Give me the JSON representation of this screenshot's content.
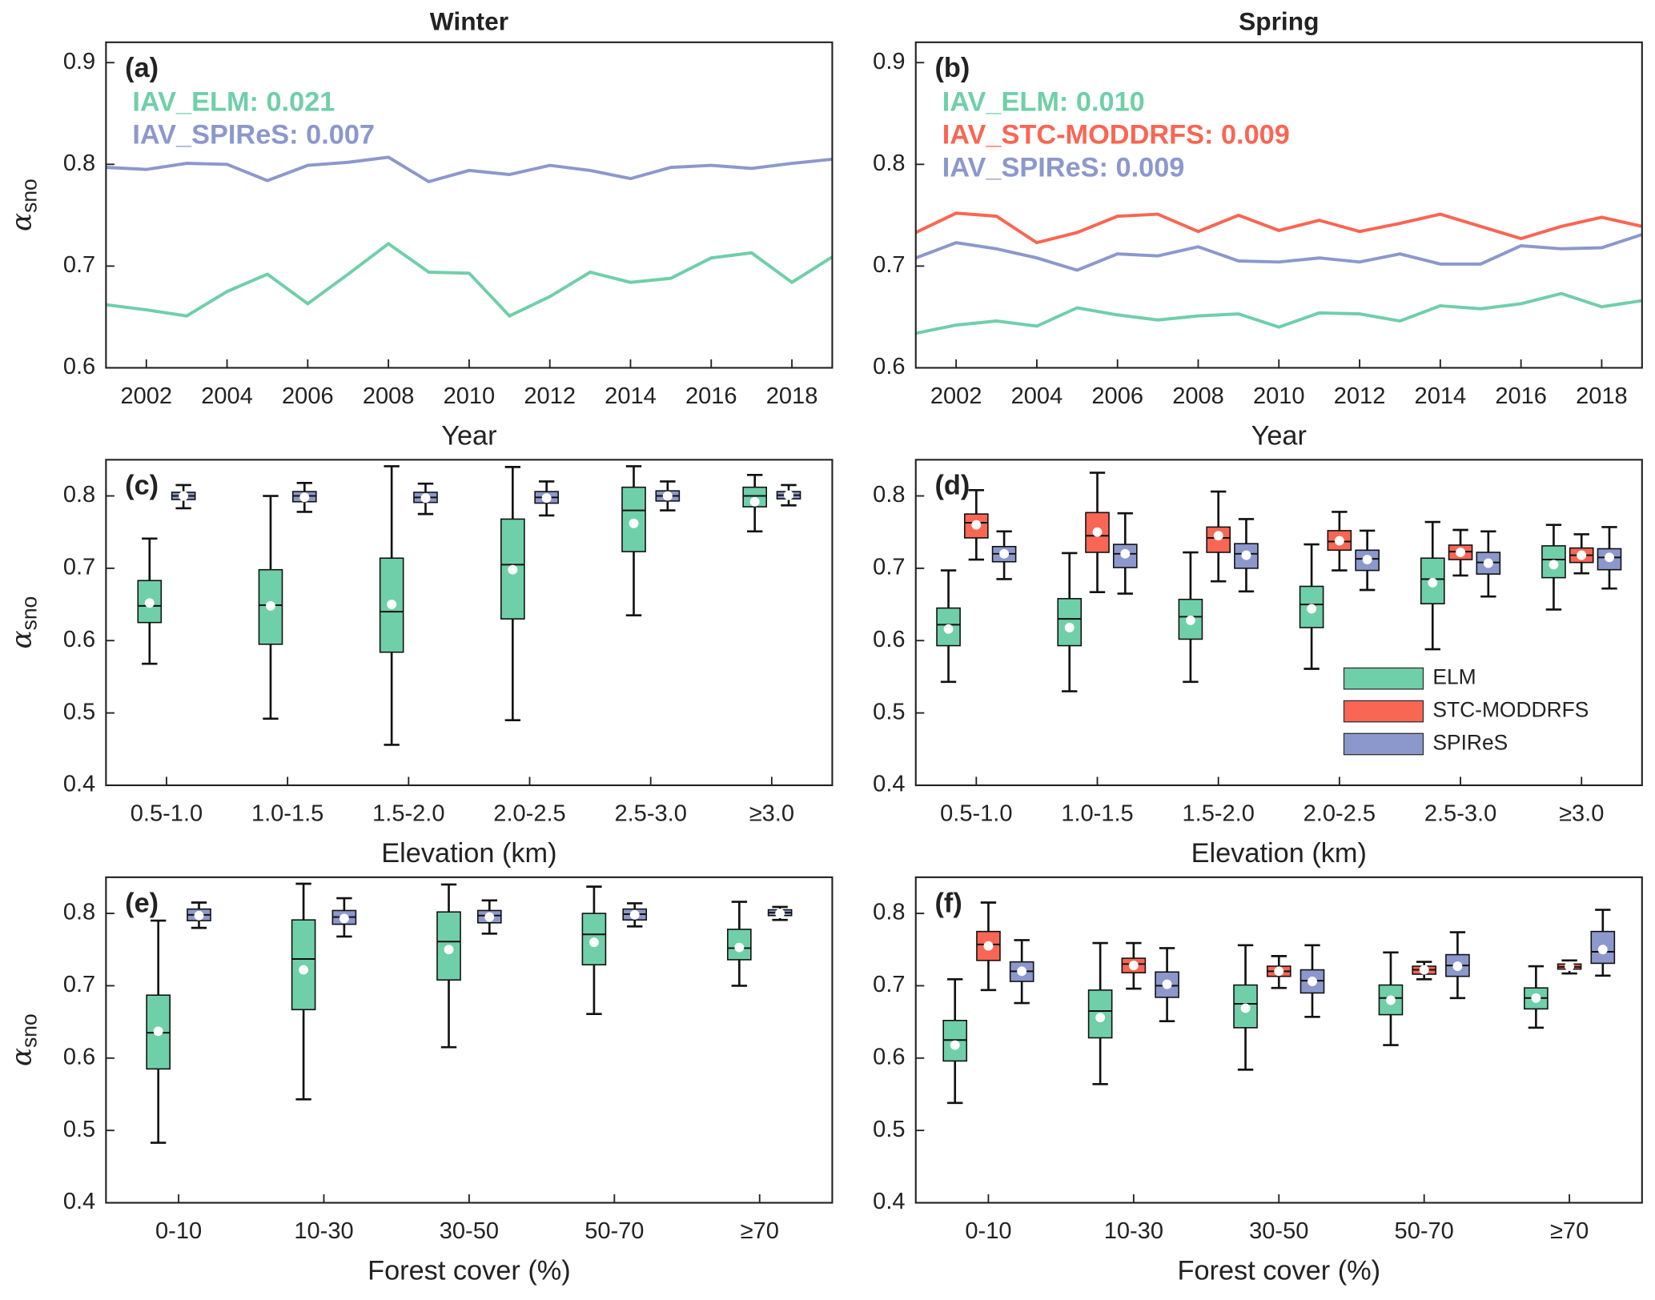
{
  "chart_data": [
    {
      "type": "line",
      "title": "Winter",
      "panel": "(a)",
      "ylabel": "α",
      "ylabel_subscript": "sno",
      "xlabel": "Year",
      "annotations": [
        {
          "text": "IAV_ELM: 0.021",
          "color": "#6fcfa9"
        },
        {
          "text": "IAV_SPIReS: 0.007",
          "color": "#8c98cc"
        }
      ],
      "x": [
        2001,
        2002,
        2003,
        2004,
        2005,
        2006,
        2007,
        2008,
        2009,
        2010,
        2011,
        2012,
        2013,
        2014,
        2015,
        2016,
        2017,
        2018,
        2019
      ],
      "series": [
        {
          "name": "ELM",
          "color": "#6fcfa9",
          "values": [
            0.662,
            0.657,
            0.651,
            0.675,
            0.692,
            0.663,
            0.692,
            0.722,
            0.694,
            0.693,
            0.651,
            0.67,
            0.694,
            0.684,
            0.688,
            0.708,
            0.713,
            0.684,
            0.709
          ]
        },
        {
          "name": "SPIReS",
          "color": "#8c98cc",
          "values": [
            0.797,
            0.795,
            0.801,
            0.8,
            0.784,
            0.799,
            0.802,
            0.807,
            0.783,
            0.794,
            0.79,
            0.799,
            0.794,
            0.786,
            0.797,
            0.799,
            0.796,
            0.801,
            0.805
          ]
        }
      ],
      "xlim": [
        2001,
        2019
      ],
      "xticks": [
        2002,
        2004,
        2006,
        2008,
        2010,
        2012,
        2014,
        2016,
        2018
      ],
      "ylim": [
        0.6,
        0.92
      ],
      "yticks": [
        0.6,
        0.7,
        0.8,
        0.9
      ]
    },
    {
      "type": "line",
      "title": "Spring",
      "panel": "(b)",
      "xlabel": "Year",
      "annotations": [
        {
          "text": "IAV_ELM: 0.010",
          "color": "#6fcfa9"
        },
        {
          "text": "IAV_STC-MODDRFS: 0.009",
          "color": "#f96653"
        },
        {
          "text": "IAV_SPIReS: 0.009",
          "color": "#8c98cc"
        }
      ],
      "x": [
        2001,
        2002,
        2003,
        2004,
        2005,
        2006,
        2007,
        2008,
        2009,
        2010,
        2011,
        2012,
        2013,
        2014,
        2015,
        2016,
        2017,
        2018,
        2019
      ],
      "series": [
        {
          "name": "ELM",
          "color": "#6fcfa9",
          "values": [
            0.634,
            0.642,
            0.646,
            0.641,
            0.659,
            0.652,
            0.647,
            0.651,
            0.653,
            0.64,
            0.654,
            0.653,
            0.646,
            0.661,
            0.658,
            0.663,
            0.673,
            0.66,
            0.666
          ]
        },
        {
          "name": "STC-MODDRFS",
          "color": "#f96653",
          "values": [
            0.733,
            0.752,
            0.749,
            0.723,
            0.733,
            0.749,
            0.751,
            0.734,
            0.75,
            0.735,
            0.745,
            0.734,
            0.742,
            0.751,
            0.739,
            0.727,
            0.739,
            0.748,
            0.739
          ]
        },
        {
          "name": "SPIReS",
          "color": "#8c98cc",
          "values": [
            0.708,
            0.723,
            0.717,
            0.708,
            0.696,
            0.712,
            0.71,
            0.719,
            0.705,
            0.704,
            0.708,
            0.704,
            0.712,
            0.702,
            0.702,
            0.72,
            0.717,
            0.718,
            0.731
          ]
        }
      ],
      "xlim": [
        2001,
        2019
      ],
      "xticks": [
        2002,
        2004,
        2006,
        2008,
        2010,
        2012,
        2014,
        2016,
        2018
      ],
      "ylim": [
        0.6,
        0.92
      ],
      "yticks": [
        0.6,
        0.7,
        0.8,
        0.9
      ]
    },
    {
      "type": "box",
      "panel": "(c)",
      "ylabel": "α",
      "ylabel_subscript": "sno",
      "xlabel": "Elevation (km)",
      "categories": [
        "0.5-1.0",
        "1.0-1.5",
        "1.5-2.0",
        "2.0-2.5",
        "2.5-3.0",
        "≥3.0"
      ],
      "series": [
        {
          "name": "ELM",
          "color": "#6fcfa9",
          "whislo": [
            0.568,
            0.492,
            0.456,
            0.49,
            0.635,
            0.751
          ],
          "q1": [
            0.625,
            0.595,
            0.584,
            0.63,
            0.723,
            0.785
          ],
          "median": [
            0.648,
            0.649,
            0.64,
            0.705,
            0.78,
            0.8
          ],
          "q3": [
            0.683,
            0.698,
            0.714,
            0.768,
            0.812,
            0.812
          ],
          "whishi": [
            0.741,
            0.8,
            0.841,
            0.84,
            0.841,
            0.829
          ],
          "mean": [
            0.652,
            0.648,
            0.65,
            0.698,
            0.762,
            0.792
          ]
        },
        {
          "name": "SPIReS",
          "color": "#8c98cc",
          "whislo": [
            0.783,
            0.778,
            0.775,
            0.773,
            0.78,
            0.787
          ],
          "q1": [
            0.795,
            0.792,
            0.791,
            0.79,
            0.793,
            0.796
          ],
          "median": [
            0.8,
            0.8,
            0.798,
            0.798,
            0.8,
            0.801
          ],
          "q3": [
            0.805,
            0.806,
            0.805,
            0.806,
            0.807,
            0.806
          ],
          "whishi": [
            0.815,
            0.818,
            0.817,
            0.82,
            0.82,
            0.815
          ],
          "mean": [
            0.8,
            0.798,
            0.797,
            0.797,
            0.8,
            0.801
          ]
        }
      ],
      "ylim": [
        0.4,
        0.85
      ],
      "yticks": [
        0.4,
        0.5,
        0.6,
        0.7,
        0.8
      ]
    },
    {
      "type": "box",
      "panel": "(d)",
      "xlabel": "Elevation (km)",
      "legend": "lower right",
      "categories": [
        "0.5-1.0",
        "1.0-1.5",
        "1.5-2.0",
        "2.0-2.5",
        "2.5-3.0",
        "≥3.0"
      ],
      "series": [
        {
          "name": "ELM",
          "color": "#6fcfa9",
          "whislo": [
            0.543,
            0.53,
            0.543,
            0.561,
            0.588,
            0.643
          ],
          "q1": [
            0.593,
            0.593,
            0.602,
            0.618,
            0.651,
            0.687
          ],
          "median": [
            0.622,
            0.63,
            0.633,
            0.65,
            0.685,
            0.712
          ],
          "q3": [
            0.645,
            0.658,
            0.657,
            0.675,
            0.714,
            0.731
          ],
          "whishi": [
            0.697,
            0.721,
            0.722,
            0.733,
            0.764,
            0.76
          ],
          "mean": [
            0.616,
            0.618,
            0.628,
            0.644,
            0.68,
            0.705
          ]
        },
        {
          "name": "STC-MODDRFS",
          "color": "#f96653",
          "whislo": [
            0.712,
            0.667,
            0.682,
            0.697,
            0.69,
            0.693
          ],
          "q1": [
            0.742,
            0.722,
            0.722,
            0.725,
            0.712,
            0.708
          ],
          "median": [
            0.763,
            0.745,
            0.742,
            0.737,
            0.723,
            0.718
          ],
          "q3": [
            0.775,
            0.777,
            0.757,
            0.752,
            0.732,
            0.728
          ],
          "whishi": [
            0.808,
            0.832,
            0.806,
            0.778,
            0.753,
            0.747
          ],
          "mean": [
            0.76,
            0.75,
            0.745,
            0.738,
            0.722,
            0.718
          ]
        },
        {
          "name": "SPIReS",
          "color": "#8c98cc",
          "whislo": [
            0.685,
            0.665,
            0.668,
            0.67,
            0.661,
            0.672
          ],
          "q1": [
            0.709,
            0.701,
            0.7,
            0.697,
            0.692,
            0.698
          ],
          "median": [
            0.72,
            0.72,
            0.72,
            0.713,
            0.708,
            0.715
          ],
          "q3": [
            0.73,
            0.733,
            0.734,
            0.725,
            0.722,
            0.727
          ],
          "whishi": [
            0.751,
            0.776,
            0.768,
            0.752,
            0.751,
            0.757
          ],
          "mean": [
            0.72,
            0.72,
            0.718,
            0.712,
            0.707,
            0.715
          ]
        }
      ],
      "ylim": [
        0.4,
        0.85
      ],
      "yticks": [
        0.4,
        0.5,
        0.6,
        0.7,
        0.8
      ]
    },
    {
      "type": "box",
      "panel": "(e)",
      "ylabel": "α",
      "ylabel_subscript": "sno",
      "xlabel": "Forest cover (%)",
      "categories": [
        "0-10",
        "10-30",
        "30-50",
        "50-70",
        "≥70"
      ],
      "series": [
        {
          "name": "ELM",
          "color": "#6fcfa9",
          "whislo": [
            0.483,
            0.543,
            0.615,
            0.661,
            0.7
          ],
          "q1": [
            0.585,
            0.667,
            0.708,
            0.729,
            0.736
          ],
          "median": [
            0.635,
            0.737,
            0.761,
            0.771,
            0.752
          ],
          "q3": [
            0.687,
            0.791,
            0.802,
            0.8,
            0.778
          ],
          "whishi": [
            0.79,
            0.841,
            0.84,
            0.837,
            0.816
          ],
          "mean": [
            0.637,
            0.722,
            0.75,
            0.76,
            0.753
          ]
        },
        {
          "name": "SPIReS",
          "color": "#8c98cc",
          "whislo": [
            0.78,
            0.768,
            0.772,
            0.782,
            0.791
          ],
          "q1": [
            0.79,
            0.785,
            0.787,
            0.791,
            0.797
          ],
          "median": [
            0.798,
            0.795,
            0.797,
            0.799,
            0.801
          ],
          "q3": [
            0.806,
            0.804,
            0.804,
            0.806,
            0.805
          ],
          "whishi": [
            0.815,
            0.821,
            0.818,
            0.814,
            0.809
          ],
          "mean": [
            0.797,
            0.793,
            0.795,
            0.798,
            0.8
          ]
        }
      ],
      "ylim": [
        0.4,
        0.85
      ],
      "yticks": [
        0.4,
        0.5,
        0.6,
        0.7,
        0.8
      ]
    },
    {
      "type": "box",
      "panel": "(f)",
      "xlabel": "Forest cover (%)",
      "categories": [
        "0-10",
        "10-30",
        "30-50",
        "50-70",
        "≥70"
      ],
      "series": [
        {
          "name": "ELM",
          "color": "#6fcfa9",
          "whislo": [
            0.538,
            0.564,
            0.584,
            0.618,
            0.642
          ],
          "q1": [
            0.596,
            0.628,
            0.642,
            0.66,
            0.668
          ],
          "median": [
            0.625,
            0.665,
            0.675,
            0.683,
            0.683
          ],
          "q3": [
            0.652,
            0.694,
            0.701,
            0.701,
            0.697
          ],
          "whishi": [
            0.709,
            0.759,
            0.756,
            0.746,
            0.727
          ],
          "mean": [
            0.618,
            0.656,
            0.669,
            0.68,
            0.683
          ]
        },
        {
          "name": "STC-MODDRFS",
          "color": "#f96653",
          "whislo": [
            0.694,
            0.696,
            0.697,
            0.709,
            0.717
          ],
          "q1": [
            0.735,
            0.718,
            0.713,
            0.716,
            0.723
          ],
          "median": [
            0.757,
            0.73,
            0.72,
            0.722,
            0.726
          ],
          "q3": [
            0.775,
            0.738,
            0.727,
            0.727,
            0.73
          ],
          "whishi": [
            0.815,
            0.759,
            0.741,
            0.733,
            0.735
          ],
          "mean": [
            0.755,
            0.728,
            0.72,
            0.722,
            0.727
          ]
        },
        {
          "name": "SPIReS",
          "color": "#8c98cc",
          "whislo": [
            0.676,
            0.651,
            0.657,
            0.683,
            0.714
          ],
          "q1": [
            0.706,
            0.684,
            0.69,
            0.713,
            0.731
          ],
          "median": [
            0.72,
            0.7,
            0.707,
            0.728,
            0.747
          ],
          "q3": [
            0.733,
            0.719,
            0.722,
            0.743,
            0.775
          ],
          "whishi": [
            0.763,
            0.752,
            0.756,
            0.774,
            0.805
          ],
          "mean": [
            0.72,
            0.702,
            0.706,
            0.727,
            0.75
          ]
        }
      ],
      "ylim": [
        0.4,
        0.85
      ],
      "yticks": [
        0.4,
        0.5,
        0.6,
        0.7,
        0.8
      ]
    }
  ]
}
